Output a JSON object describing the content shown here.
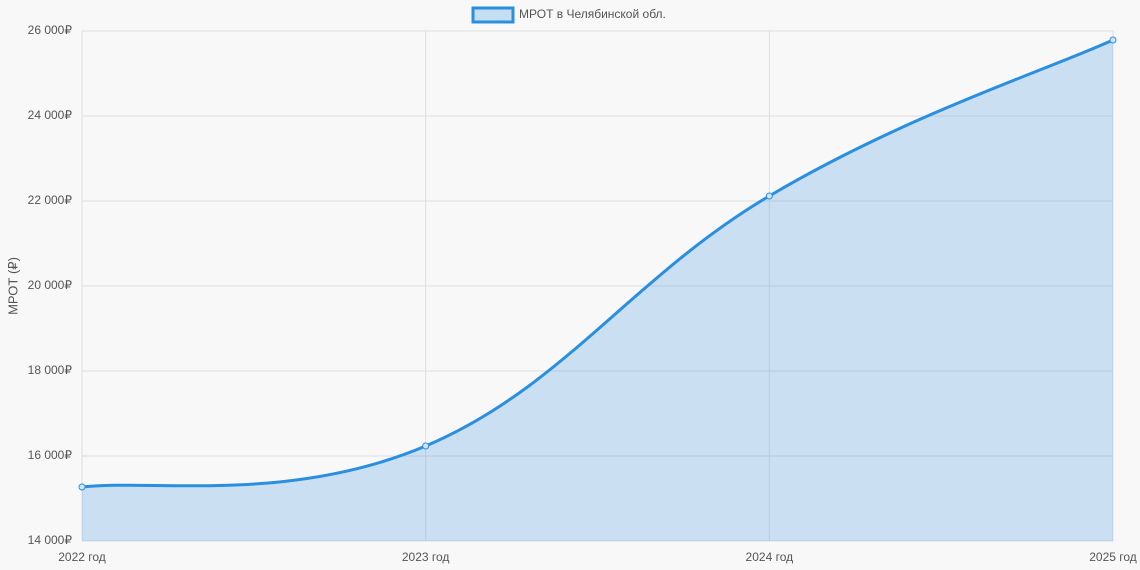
{
  "chart_data": {
    "type": "line",
    "fill": true,
    "grid": true,
    "legend": "top",
    "y_label": "МРОТ (₽)",
    "categories": [
      "2022 год",
      "2023 год",
      "2024 год",
      "2025 год"
    ],
    "series": [
      {
        "name": "МРОТ в Челябинской обл.",
        "color": "#2b8fe0",
        "values": [
          15270,
          16235,
          22118,
          25788
        ]
      }
    ],
    "ylim": [
      14000,
      26000
    ],
    "yticks": [
      {
        "value": 14000,
        "label": "14 000₽"
      },
      {
        "value": 16000,
        "label": "16 000₽"
      },
      {
        "value": 18000,
        "label": "18 000₽"
      },
      {
        "value": 20000,
        "label": "20 000₽"
      },
      {
        "value": 22000,
        "label": "22 000₽"
      },
      {
        "value": 24000,
        "label": "24 000₽"
      },
      {
        "value": 26000,
        "label": "26 000₽"
      }
    ]
  }
}
